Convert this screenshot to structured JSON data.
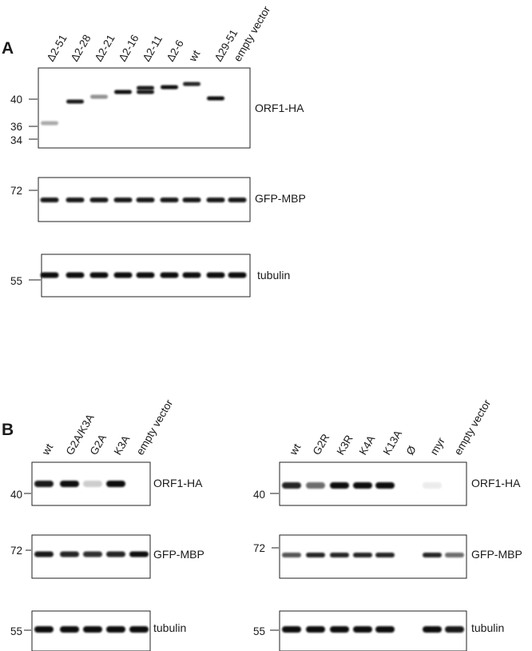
{
  "panel_a": {
    "letter": "A",
    "lanes": [
      "Δ2-51",
      "Δ2-28",
      "Δ2-21",
      "Δ2-16",
      "Δ2-11",
      "Δ2-6",
      "wt",
      "Δ29-51",
      "empty vector"
    ],
    "blots": [
      {
        "label": "ORF1-HA",
        "markers": [
          "40",
          "36",
          "34"
        ],
        "bands": [
          {
            "lane": 0,
            "level": 0.69,
            "intensity": 0.35
          },
          {
            "lane": 1,
            "level": 0.42,
            "intensity": 0.95
          },
          {
            "lane": 2,
            "level": 0.36,
            "intensity": 0.45
          },
          {
            "lane": 3,
            "level": 0.3,
            "intensity": 1.0
          },
          {
            "lane": 4,
            "level": 0.25,
            "intensity": 0.95
          },
          {
            "lane": 4,
            "level": 0.3,
            "intensity": 0.95
          },
          {
            "lane": 5,
            "level": 0.24,
            "intensity": 1.0
          },
          {
            "lane": 6,
            "level": 0.2,
            "intensity": 0.9
          },
          {
            "lane": 7,
            "level": 0.38,
            "intensity": 1.0
          }
        ]
      },
      {
        "label": "GFP-MBP",
        "markers": [
          "72"
        ]
      },
      {
        "label": "tubulin",
        "markers": [
          "55"
        ]
      }
    ]
  },
  "panel_b": {
    "letter": "B",
    "left": {
      "lanes": [
        "wt",
        "G2A/K3A",
        "G2A",
        "K3A",
        "empty vector"
      ],
      "blots": [
        {
          "label": "ORF1-HA",
          "markers": [
            "40"
          ],
          "intensities": [
            0.95,
            1.0,
            0.2,
            1.0,
            0
          ]
        },
        {
          "label": "GFP-MBP",
          "markers": [
            "72"
          ],
          "intensities": [
            0.95,
            0.9,
            0.85,
            0.9,
            1.0
          ]
        },
        {
          "label": "tubulin",
          "markers": [
            "55"
          ],
          "intensities": [
            1.0,
            1.0,
            1.0,
            1.0,
            1.0
          ]
        }
      ]
    },
    "right": {
      "lanes": [
        "wt",
        "G2R",
        "K3R",
        "K4A",
        "K13A",
        "Ø",
        "myr",
        "empty vector"
      ],
      "blots": [
        {
          "label": "ORF1-HA",
          "markers": [
            "40"
          ],
          "intensities": [
            0.9,
            0.6,
            1.0,
            1.0,
            1.0,
            0,
            0.08,
            0
          ]
        },
        {
          "label": "GFP-MBP",
          "markers": [
            "72"
          ],
          "intensities": [
            0.7,
            0.9,
            0.9,
            0.9,
            0.9,
            0,
            0.9,
            0.6
          ]
        },
        {
          "label": "tubulin",
          "markers": [
            "55"
          ],
          "intensities": [
            1.0,
            1.0,
            1.0,
            1.0,
            1.0,
            0,
            1.0,
            0.95
          ]
        }
      ]
    }
  },
  "colors": {
    "band": "#111111",
    "frame": "#222222",
    "text": "#1a1a1a"
  }
}
